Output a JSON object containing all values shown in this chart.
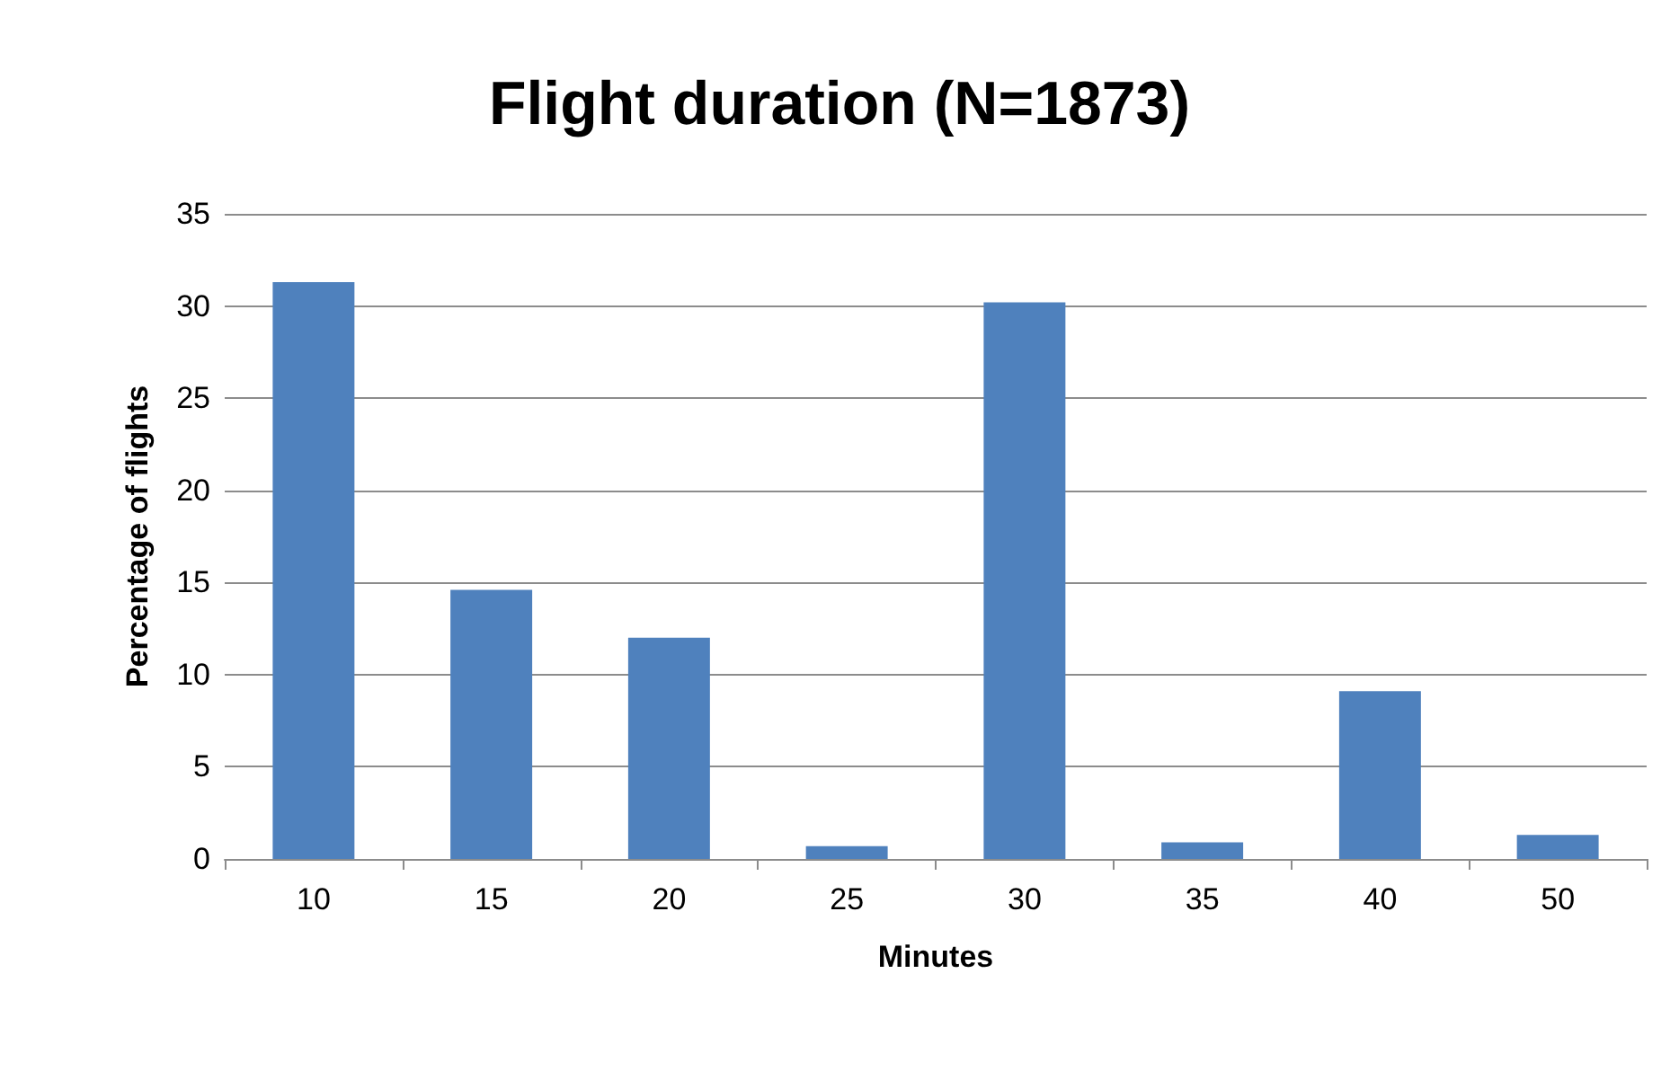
{
  "chart_data": {
    "type": "bar",
    "title": "Flight duration (N=1873)",
    "xlabel": "Minutes",
    "ylabel": "Percentage of flights",
    "categories": [
      "10",
      "15",
      "20",
      "25",
      "30",
      "35",
      "40",
      "50"
    ],
    "values": [
      31.3,
      14.6,
      12.0,
      0.7,
      30.2,
      0.9,
      9.1,
      1.3
    ],
    "color": "#4f81bd",
    "ylim": [
      0,
      35
    ],
    "yticks": [
      0,
      5,
      10,
      15,
      20,
      25,
      30,
      35
    ],
    "grid": "y"
  }
}
